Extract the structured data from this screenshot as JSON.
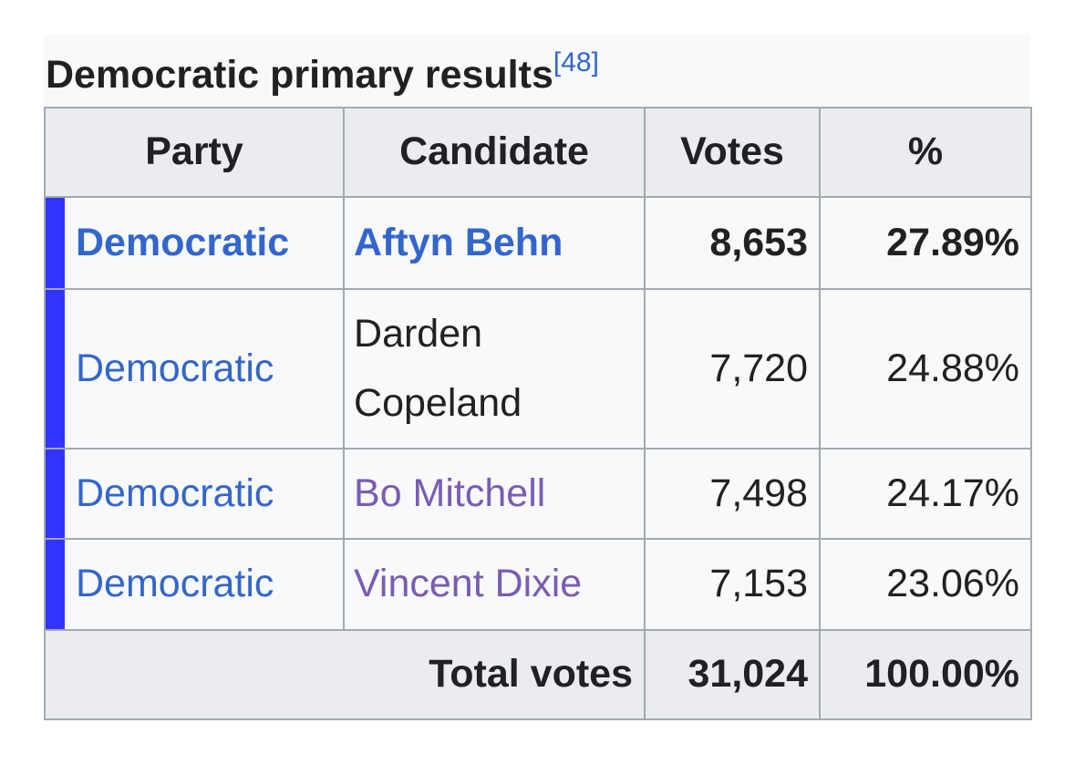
{
  "caption": {
    "title": "Democratic primary results",
    "ref": "[48]"
  },
  "table": {
    "header": [
      "Party",
      "Candidate",
      "Votes",
      "%"
    ],
    "rows": [
      [
        "Democratic",
        "Aftyn Behn",
        "8,653",
        "27.89%"
      ],
      [
        "Democratic",
        "Darden Copeland",
        "7,720",
        "24.88%"
      ],
      [
        "Democratic",
        "Bo Mitchell",
        "7,498",
        "24.17%"
      ],
      [
        "Democratic",
        "Vincent Dixie",
        "7,153",
        "23.06%"
      ]
    ],
    "total": {
      "label": "Total votes",
      "votes": "31,024",
      "percent": "100.00%"
    }
  }
}
